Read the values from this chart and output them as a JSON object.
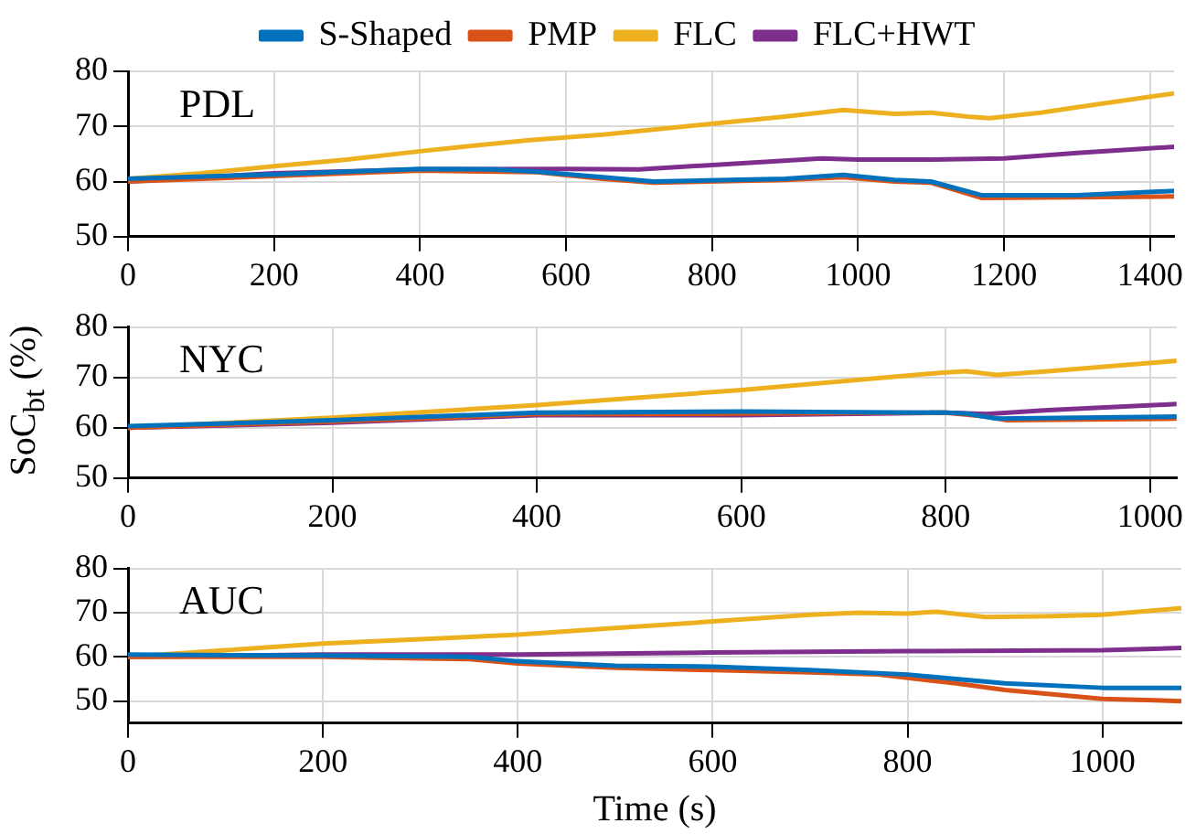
{
  "chart_data": [
    {
      "type": "line",
      "legend": "top",
      "grid": true,
      "annotations": [
        "PDL"
      ],
      "xlim": [
        0,
        1433
      ],
      "xticks": [
        0,
        200,
        400,
        600,
        800,
        1000,
        1200,
        1400
      ],
      "ylim": [
        50,
        80
      ],
      "yticks": [
        50,
        60,
        70,
        80
      ],
      "series": [
        {
          "name": "S-Shaped",
          "color": "#0072bd",
          "x": [
            0,
            200,
            400,
            500,
            560,
            650,
            720,
            900,
            980,
            1050,
            1100,
            1170,
            1300,
            1433
          ],
          "values": [
            60.5,
            61.3,
            62.3,
            62.2,
            61.8,
            60.8,
            60,
            60.5,
            61.2,
            60.3,
            60,
            57.5,
            57.5,
            58.3
          ]
        },
        {
          "name": "PMP",
          "color": "#d95319",
          "x": [
            0,
            200,
            400,
            560,
            650,
            720,
            900,
            980,
            1050,
            1100,
            1170,
            1433
          ],
          "values": [
            60,
            61,
            62,
            61.7,
            60.5,
            59.8,
            60.3,
            60.8,
            60,
            59.8,
            57,
            57.3
          ]
        },
        {
          "name": "FLC",
          "color": "#edb120",
          "x": [
            0,
            100,
            200,
            300,
            400,
            450,
            550,
            650,
            800,
            900,
            980,
            1000,
            1050,
            1100,
            1150,
            1180,
            1250,
            1300,
            1433
          ],
          "values": [
            60.5,
            61.5,
            62.8,
            64,
            65.5,
            66.2,
            67.5,
            68.5,
            70.5,
            71.8,
            73,
            72.8,
            72.3,
            72.5,
            71.8,
            71.5,
            72.5,
            73.5,
            76
          ]
        },
        {
          "name": "FLC+HWT",
          "color": "#7e2f8e",
          "x": [
            0,
            200,
            400,
            600,
            700,
            800,
            950,
            1000,
            1100,
            1200,
            1300,
            1433
          ],
          "values": [
            60,
            61.5,
            62.2,
            62.3,
            62.2,
            63,
            64.2,
            64,
            64,
            64.2,
            65.2,
            66.3
          ]
        }
      ]
    },
    {
      "type": "line",
      "legend": false,
      "grid": true,
      "annotations": [
        "NYC"
      ],
      "ylabel": "SoC$_{bt}$ (%)",
      "xlim": [
        0,
        1026
      ],
      "xticks": [
        0,
        200,
        400,
        600,
        800,
        1000
      ],
      "ylim": [
        50,
        80
      ],
      "yticks": [
        50,
        60,
        70,
        80
      ],
      "series": [
        {
          "color": "#0072bd",
          "x": [
            0,
            200,
            400,
            600,
            800,
            820,
            850,
            1026
          ],
          "values": [
            60.3,
            61.5,
            63,
            63.2,
            63,
            62.8,
            61.8,
            62.2
          ]
        },
        {
          "color": "#d95319",
          "x": [
            0,
            200,
            400,
            600,
            800,
            840,
            860,
            1026
          ],
          "values": [
            60,
            61.2,
            62.7,
            62.8,
            63,
            62.2,
            61.5,
            61.8
          ]
        },
        {
          "color": "#edb120",
          "x": [
            0,
            200,
            400,
            600,
            800,
            820,
            850,
            900,
            1026
          ],
          "values": [
            60,
            62,
            64.5,
            67.5,
            71,
            71.2,
            70.5,
            71.2,
            73.3
          ]
        },
        {
          "color": "#7e2f8e",
          "x": [
            0,
            200,
            400,
            600,
            800,
            840,
            900,
            1026
          ],
          "values": [
            60,
            61,
            62.5,
            62.5,
            63,
            62.7,
            63.5,
            64.7
          ]
        }
      ]
    },
    {
      "type": "line",
      "legend": false,
      "grid": true,
      "annotations": [
        "AUC"
      ],
      "xlabel": "Time (s)",
      "xlim": [
        0,
        1081
      ],
      "xticks": [
        0,
        200,
        400,
        600,
        800,
        1000
      ],
      "ylim": [
        45,
        80
      ],
      "yticks": [
        50,
        60,
        70,
        80
      ],
      "series": [
        {
          "color": "#0072bd",
          "x": [
            0,
            200,
            350,
            400,
            500,
            600,
            700,
            800,
            850,
            900,
            1000,
            1081
          ],
          "values": [
            60.5,
            60.3,
            60,
            59,
            58,
            57.8,
            57,
            56,
            55,
            54,
            53,
            53
          ]
        },
        {
          "color": "#d95319",
          "x": [
            0,
            200,
            350,
            400,
            500,
            600,
            700,
            770,
            850,
            900,
            1000,
            1081
          ],
          "values": [
            60,
            60,
            59.5,
            58.5,
            57.5,
            57,
            56.5,
            56,
            54,
            52.5,
            50.5,
            50
          ]
        },
        {
          "color": "#edb120",
          "x": [
            0,
            100,
            200,
            300,
            400,
            500,
            600,
            700,
            750,
            800,
            830,
            880,
            950,
            1000,
            1081
          ],
          "values": [
            60,
            61.5,
            63,
            64,
            65,
            66.5,
            68,
            69.5,
            70,
            69.8,
            70.2,
            69,
            69.2,
            69.5,
            71
          ]
        },
        {
          "color": "#7e2f8e",
          "x": [
            0,
            200,
            400,
            600,
            800,
            1000,
            1081
          ],
          "values": [
            60,
            60.5,
            60.5,
            61,
            61.3,
            61.5,
            62
          ]
        }
      ]
    }
  ]
}
